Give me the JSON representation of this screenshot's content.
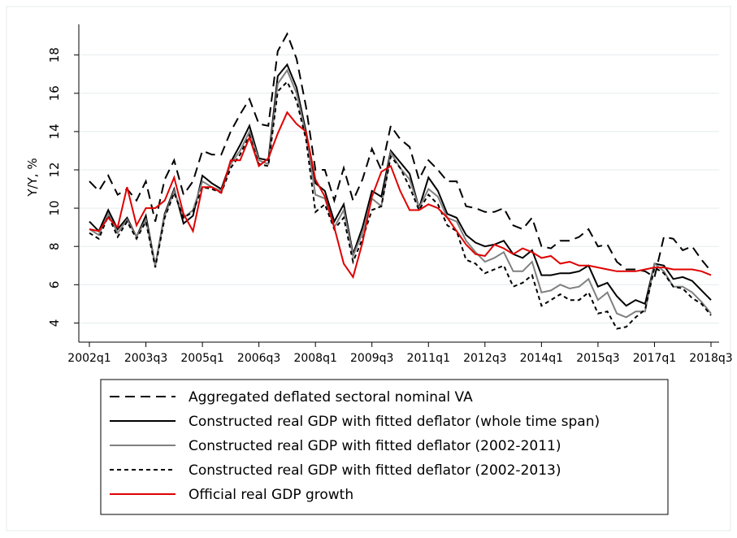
{
  "chart_data": {
    "type": "line",
    "y_label": "Y/Y, %",
    "categories": [
      "2002q1",
      null,
      null,
      null,
      null,
      null,
      "2003q3",
      null,
      null,
      null,
      null,
      null,
      "2005q1",
      null,
      null,
      null,
      null,
      null,
      "2006q3",
      null,
      null,
      null,
      null,
      null,
      "2008q1",
      null,
      null,
      null,
      null,
      null,
      "2009q3",
      null,
      null,
      null,
      null,
      null,
      "2011q1",
      null,
      null,
      null,
      null,
      null,
      "2012q3",
      null,
      null,
      null,
      null,
      null,
      "2014q1",
      null,
      null,
      null,
      null,
      null,
      "2015q3",
      null,
      null,
      null,
      null,
      null,
      "2017q1",
      null,
      null,
      null,
      null,
      null,
      "2018q3"
    ],
    "ylim": [
      3,
      19.6
    ],
    "yticks": [
      4,
      6,
      8,
      10,
      12,
      14,
      16,
      18
    ],
    "grid": true,
    "series": [
      {
        "name": "Aggregated deflated sectoral nominal VA",
        "color": "#000000",
        "style": "dashed",
        "values": [
          11.4,
          10.9,
          11.7,
          10.7,
          11.0,
          10.4,
          11.4,
          9.3,
          11.5,
          12.5,
          10.7,
          11.4,
          13.0,
          12.8,
          12.8,
          14.0,
          14.9,
          15.7,
          14.4,
          14.3,
          18.2,
          19.1,
          17.8,
          15.3,
          12.0,
          12.0,
          10.4,
          12.1,
          10.4,
          11.5,
          13.1,
          12.0,
          14.3,
          13.6,
          13.2,
          11.5,
          12.5,
          12.0,
          11.4,
          11.4,
          10.1,
          10.0,
          9.8,
          9.8,
          10.0,
          9.1,
          8.9,
          9.5,
          8.0,
          7.9,
          8.3,
          8.3,
          8.5,
          8.9,
          8.0,
          8.1,
          7.2,
          6.8,
          6.8,
          6.7,
          6.4,
          8.5,
          8.4,
          7.8,
          8.0,
          7.3,
          6.7
        ]
      },
      {
        "name": "Constructed real GDP with fitted deflator (whole time span)",
        "color": "#000000",
        "style": "solid",
        "values": [
          9.3,
          8.8,
          9.9,
          8.9,
          9.5,
          8.5,
          9.6,
          7.0,
          9.7,
          11.0,
          9.2,
          9.6,
          11.7,
          11.3,
          11.0,
          12.4,
          13.3,
          14.3,
          12.6,
          12.5,
          16.9,
          17.5,
          16.3,
          14.0,
          11.3,
          10.9,
          9.3,
          10.2,
          7.6,
          9.0,
          10.9,
          10.6,
          13.0,
          12.4,
          11.8,
          10.0,
          11.6,
          10.9,
          9.7,
          9.5,
          8.6,
          8.2,
          8.0,
          8.1,
          8.3,
          7.6,
          7.4,
          7.8,
          6.5,
          6.5,
          6.6,
          6.6,
          6.7,
          7.0,
          5.9,
          6.1,
          5.4,
          4.9,
          5.2,
          5.0,
          7.1,
          7.0,
          6.3,
          6.4,
          6.2,
          5.7,
          5.2
        ]
      },
      {
        "name": "Constructed real GDP with fitted deflator (2002-2011)",
        "color": "#808080",
        "style": "solid",
        "values": [
          8.9,
          8.6,
          9.7,
          8.7,
          9.4,
          8.5,
          9.4,
          7.0,
          9.6,
          10.9,
          9.5,
          9.9,
          11.4,
          11.1,
          10.9,
          12.3,
          13.0,
          14.0,
          12.5,
          12.3,
          16.5,
          17.2,
          16.0,
          13.8,
          10.7,
          10.5,
          9.0,
          9.9,
          7.5,
          8.7,
          10.5,
          10.1,
          12.9,
          12.1,
          11.5,
          10.0,
          11.0,
          10.6,
          9.5,
          9.3,
          8.3,
          7.7,
          7.2,
          7.4,
          7.7,
          6.7,
          6.7,
          7.2,
          5.6,
          5.7,
          6.0,
          5.8,
          5.9,
          6.3,
          5.2,
          5.6,
          4.5,
          4.3,
          4.6,
          4.6,
          7.1,
          6.7,
          5.9,
          5.9,
          5.6,
          5.1,
          4.5
        ]
      },
      {
        "name": "Constructed real GDP with fitted deflator (2002-2013)",
        "color": "#000000",
        "style": "dotted",
        "values": [
          8.7,
          8.4,
          9.6,
          8.5,
          9.3,
          8.4,
          9.3,
          6.9,
          9.5,
          10.8,
          9.5,
          9.8,
          11.1,
          11.0,
          10.8,
          12.1,
          12.8,
          13.8,
          12.3,
          12.2,
          16.1,
          16.6,
          15.6,
          13.6,
          9.8,
          10.2,
          8.9,
          9.5,
          7.2,
          8.4,
          9.9,
          10.1,
          12.7,
          12.1,
          11.1,
          9.9,
          10.7,
          10.2,
          9.1,
          8.8,
          7.3,
          7.1,
          6.6,
          6.8,
          7.0,
          5.9,
          6.1,
          6.5,
          4.9,
          5.2,
          5.5,
          5.2,
          5.2,
          5.6,
          4.5,
          4.6,
          3.7,
          3.8,
          4.3,
          4.7,
          6.9,
          6.6,
          5.9,
          5.8,
          5.3,
          5.0,
          4.4
        ]
      },
      {
        "name": "Official real GDP growth",
        "color": "#e00000",
        "style": "solid",
        "values": [
          8.9,
          8.8,
          9.5,
          9.0,
          11.1,
          9.1,
          10.0,
          10.0,
          10.4,
          11.6,
          9.7,
          8.8,
          11.1,
          11.1,
          10.8,
          12.5,
          12.5,
          13.7,
          12.2,
          12.6,
          13.9,
          15.0,
          14.4,
          14.0,
          11.5,
          10.6,
          9.0,
          7.1,
          6.4,
          8.2,
          10.6,
          11.9,
          12.2,
          10.9,
          9.9,
          9.9,
          10.2,
          10.0,
          9.5,
          8.8,
          8.1,
          7.6,
          7.5,
          8.1,
          7.9,
          7.6,
          7.9,
          7.7,
          7.4,
          7.5,
          7.1,
          7.2,
          7.0,
          7.0,
          6.9,
          6.8,
          6.7,
          6.7,
          6.7,
          6.8,
          6.9,
          6.9,
          6.8,
          6.8,
          6.8,
          6.7,
          6.5
        ]
      }
    ]
  }
}
